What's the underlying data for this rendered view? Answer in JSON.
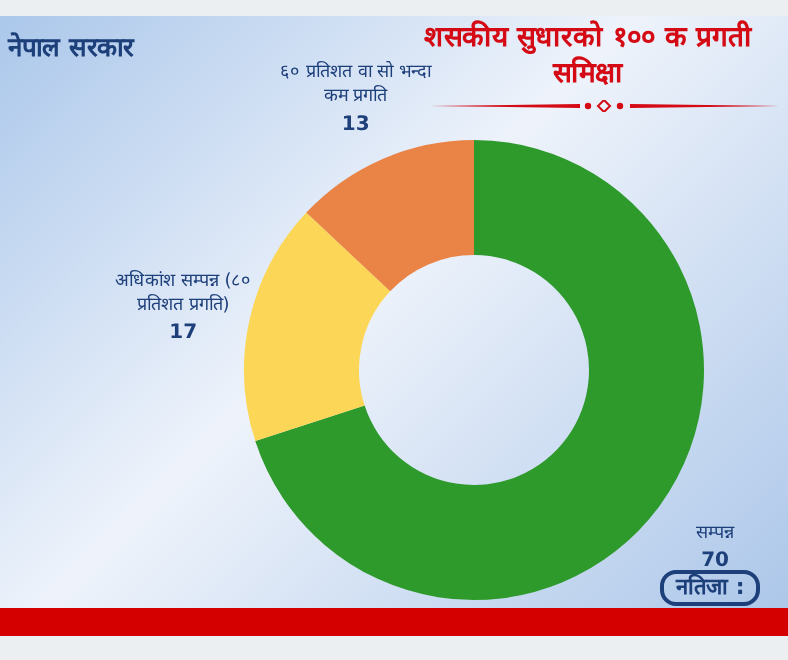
{
  "chart_data": {
    "type": "donut",
    "title": "शसकीय सुधारको १०० क प्रगती समिक्षा",
    "categories": [
      "सम्पन्न",
      "अधिकांश सम्पन्न (८० प्रतिशत प्रगति)",
      "६० प्रतिशत वा सो भन्दा कम प्रगति"
    ],
    "values": [
      70,
      17,
      13
    ],
    "colors": [
      "#2e9a2c",
      "#fcd757",
      "#e98346"
    ],
    "data_labels": true,
    "legend": false,
    "annotations": [
      "नेपाल सरकार",
      "नतिजा :"
    ]
  }
}
